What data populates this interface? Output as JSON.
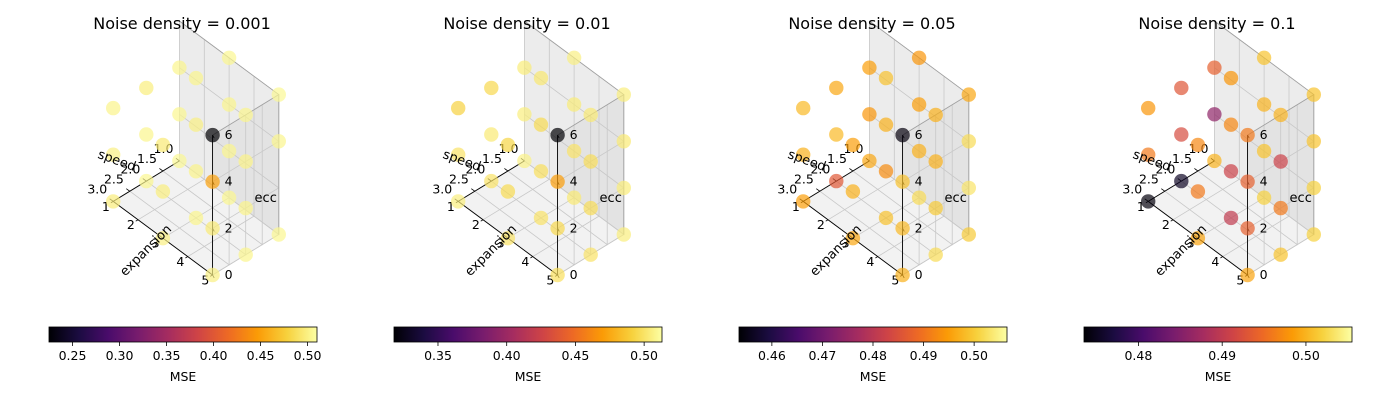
{
  "colormap": {
    "name": "inferno",
    "stops": [
      "#000004",
      "#1b0c41",
      "#4a0c6b",
      "#781c6d",
      "#a52c60",
      "#cf4446",
      "#ed6925",
      "#fb9b06",
      "#f7d13d",
      "#fcffa4"
    ]
  },
  "chart_data": [
    {
      "type": "scatter3d",
      "title": "Noise density = 0.001",
      "xlabel": "speed",
      "ylabel": "expansion",
      "zlabel": "ecc",
      "xticks": [
        "1.0",
        "1.5",
        "2.0",
        "2.5",
        "3.0"
      ],
      "yticks": [
        "1",
        "2",
        "3",
        "4",
        "5"
      ],
      "zticks": [
        "0",
        "2",
        "4",
        "6"
      ],
      "xlim": [
        1.0,
        3.0
      ],
      "ylim": [
        1,
        5
      ],
      "zlim": [
        0,
        6
      ],
      "colorbar": {
        "label": "MSE",
        "range": [
          0.225,
          0.51
        ],
        "ticks": [
          "0.25",
          "0.30",
          "0.35",
          "0.40",
          "0.45",
          "0.50"
        ]
      },
      "points": [
        {
          "x": 1.0,
          "y": 1,
          "z": 0,
          "mse": 0.505
        },
        {
          "x": 1.0,
          "y": 1,
          "z": 2,
          "mse": 0.504
        },
        {
          "x": 1.0,
          "y": 1,
          "z": 4,
          "mse": 0.503
        },
        {
          "x": 1.0,
          "y": 3,
          "z": 0,
          "mse": 0.504
        },
        {
          "x": 1.0,
          "y": 3,
          "z": 2,
          "mse": 0.503
        },
        {
          "x": 1.0,
          "y": 3,
          "z": 4,
          "mse": 0.503
        },
        {
          "x": 1.0,
          "y": 3,
          "z": 6,
          "mse": 0.504
        },
        {
          "x": 1.0,
          "y": 5,
          "z": 0,
          "mse": 0.504
        },
        {
          "x": 1.0,
          "y": 5,
          "z": 4,
          "mse": 0.503
        },
        {
          "x": 1.0,
          "y": 5,
          "z": 6,
          "mse": 0.505
        },
        {
          "x": 2.0,
          "y": 1,
          "z": 0,
          "mse": 0.504
        },
        {
          "x": 2.0,
          "y": 1,
          "z": 2,
          "mse": 0.503
        },
        {
          "x": 2.0,
          "y": 1,
          "z": 4,
          "mse": 0.498
        },
        {
          "x": 2.0,
          "y": 3,
          "z": 0,
          "mse": 0.503
        },
        {
          "x": 2.0,
          "y": 3,
          "z": 2,
          "mse": 0.502
        },
        {
          "x": 2.0,
          "y": 3,
          "z": 4,
          "mse": 0.5
        },
        {
          "x": 2.0,
          "y": 3,
          "z": 6,
          "mse": 0.503
        },
        {
          "x": 2.0,
          "y": 5,
          "z": 0,
          "mse": 0.503
        },
        {
          "x": 2.0,
          "y": 5,
          "z": 2,
          "mse": 0.502
        },
        {
          "x": 2.0,
          "y": 5,
          "z": 4,
          "mse": 0.501
        },
        {
          "x": 2.0,
          "y": 5,
          "z": 6,
          "mse": 0.503
        },
        {
          "x": 3.0,
          "y": 1,
          "z": 0,
          "mse": 0.497
        },
        {
          "x": 3.0,
          "y": 1,
          "z": 2,
          "mse": 0.5
        },
        {
          "x": 3.0,
          "y": 1,
          "z": 4,
          "mse": 0.502
        },
        {
          "x": 3.0,
          "y": 3,
          "z": 0,
          "mse": 0.5
        },
        {
          "x": 3.0,
          "y": 3,
          "z": 2,
          "mse": 0.498
        },
        {
          "x": 3.0,
          "y": 3,
          "z": 4,
          "mse": 0.495
        },
        {
          "x": 3.0,
          "y": 5,
          "z": 0,
          "mse": 0.5
        },
        {
          "x": 3.0,
          "y": 5,
          "z": 2,
          "mse": 0.496
        },
        {
          "x": 3.0,
          "y": 5,
          "z": 4,
          "mse": 0.45
        },
        {
          "x": 3.0,
          "y": 5,
          "z": 6,
          "mse": 0.225
        }
      ]
    },
    {
      "type": "scatter3d",
      "title": "Noise density = 0.01",
      "xlabel": "speed",
      "ylabel": "expansion",
      "zlabel": "ecc",
      "xticks": [
        "1.0",
        "1.5",
        "2.0",
        "2.5",
        "3.0"
      ],
      "yticks": [
        "1",
        "2",
        "3",
        "4",
        "5"
      ],
      "zticks": [
        "0",
        "2",
        "4",
        "6"
      ],
      "xlim": [
        1.0,
        3.0
      ],
      "ylim": [
        1,
        5
      ],
      "zlim": [
        0,
        6
      ],
      "colorbar": {
        "label": "MSE",
        "range": [
          0.318,
          0.513
        ],
        "ticks": [
          "0.35",
          "0.40",
          "0.45",
          "0.50"
        ]
      },
      "points": [
        {
          "x": 1.0,
          "y": 1,
          "z": 0,
          "mse": 0.507
        },
        {
          "x": 1.0,
          "y": 1,
          "z": 2,
          "mse": 0.505
        },
        {
          "x": 1.0,
          "y": 1,
          "z": 4,
          "mse": 0.504
        },
        {
          "x": 1.0,
          "y": 3,
          "z": 0,
          "mse": 0.503
        },
        {
          "x": 1.0,
          "y": 3,
          "z": 2,
          "mse": 0.5
        },
        {
          "x": 1.0,
          "y": 3,
          "z": 4,
          "mse": 0.504
        },
        {
          "x": 1.0,
          "y": 3,
          "z": 6,
          "mse": 0.506
        },
        {
          "x": 1.0,
          "y": 5,
          "z": 0,
          "mse": 0.505
        },
        {
          "x": 1.0,
          "y": 5,
          "z": 2,
          "mse": 0.504
        },
        {
          "x": 1.0,
          "y": 5,
          "z": 4,
          "mse": 0.503
        },
        {
          "x": 1.0,
          "y": 5,
          "z": 6,
          "mse": 0.505
        },
        {
          "x": 2.0,
          "y": 1,
          "z": 0,
          "mse": 0.5
        },
        {
          "x": 2.0,
          "y": 1,
          "z": 2,
          "mse": 0.503
        },
        {
          "x": 2.0,
          "y": 1,
          "z": 4,
          "mse": 0.495
        },
        {
          "x": 2.0,
          "y": 3,
          "z": 0,
          "mse": 0.5
        },
        {
          "x": 2.0,
          "y": 3,
          "z": 2,
          "mse": 0.498
        },
        {
          "x": 2.0,
          "y": 3,
          "z": 4,
          "mse": 0.496
        },
        {
          "x": 2.0,
          "y": 3,
          "z": 6,
          "mse": 0.502
        },
        {
          "x": 2.0,
          "y": 5,
          "z": 0,
          "mse": 0.5
        },
        {
          "x": 2.0,
          "y": 5,
          "z": 2,
          "mse": 0.497
        },
        {
          "x": 2.0,
          "y": 5,
          "z": 4,
          "mse": 0.497
        },
        {
          "x": 2.0,
          "y": 5,
          "z": 6,
          "mse": 0.503
        },
        {
          "x": 3.0,
          "y": 1,
          "z": 0,
          "mse": 0.505
        },
        {
          "x": 3.0,
          "y": 1,
          "z": 2,
          "mse": 0.5
        },
        {
          "x": 3.0,
          "y": 1,
          "z": 4,
          "mse": 0.492
        },
        {
          "x": 3.0,
          "y": 3,
          "z": 0,
          "mse": 0.5
        },
        {
          "x": 3.0,
          "y": 3,
          "z": 2,
          "mse": 0.496
        },
        {
          "x": 3.0,
          "y": 3,
          "z": 4,
          "mse": 0.493
        },
        {
          "x": 3.0,
          "y": 5,
          "z": 0,
          "mse": 0.498
        },
        {
          "x": 3.0,
          "y": 5,
          "z": 2,
          "mse": 0.495
        },
        {
          "x": 3.0,
          "y": 5,
          "z": 4,
          "mse": 0.47
        },
        {
          "x": 3.0,
          "y": 5,
          "z": 6,
          "mse": 0.318
        }
      ]
    },
    {
      "type": "scatter3d",
      "title": "Noise density = 0.05",
      "xlabel": "speed",
      "ylabel": "expansion",
      "zlabel": "ecc",
      "xticks": [
        "1.0",
        "1.5",
        "2.0",
        "2.5",
        "3.0"
      ],
      "yticks": [
        "1",
        "2",
        "3",
        "4",
        "5"
      ],
      "zticks": [
        "0",
        "2",
        "4",
        "6"
      ],
      "xlim": [
        1.0,
        3.0
      ],
      "ylim": [
        1,
        5
      ],
      "zlim": [
        0,
        6
      ],
      "colorbar": {
        "label": "MSE",
        "range": [
          0.4535,
          0.5065
        ],
        "ticks": [
          "0.46",
          "0.47",
          "0.48",
          "0.49",
          "0.50"
        ]
      },
      "points": [
        {
          "x": 1.0,
          "y": 1,
          "z": 0,
          "mse": 0.496
        },
        {
          "x": 1.0,
          "y": 1,
          "z": 2,
          "mse": 0.494
        },
        {
          "x": 1.0,
          "y": 1,
          "z": 4,
          "mse": 0.495
        },
        {
          "x": 1.0,
          "y": 3,
          "z": 0,
          "mse": 0.502
        },
        {
          "x": 1.0,
          "y": 3,
          "z": 2,
          "mse": 0.497
        },
        {
          "x": 1.0,
          "y": 3,
          "z": 4,
          "mse": 0.495
        },
        {
          "x": 1.0,
          "y": 3,
          "z": 6,
          "mse": 0.494
        },
        {
          "x": 1.0,
          "y": 5,
          "z": 0,
          "mse": 0.5
        },
        {
          "x": 1.0,
          "y": 5,
          "z": 2,
          "mse": 0.503
        },
        {
          "x": 1.0,
          "y": 5,
          "z": 4,
          "mse": 0.502
        },
        {
          "x": 1.0,
          "y": 5,
          "z": 6,
          "mse": 0.496
        },
        {
          "x": 2.0,
          "y": 1,
          "z": 0,
          "mse": 0.486
        },
        {
          "x": 2.0,
          "y": 1,
          "z": 2,
          "mse": 0.498
        },
        {
          "x": 2.0,
          "y": 1,
          "z": 4,
          "mse": 0.496
        },
        {
          "x": 2.0,
          "y": 3,
          "z": 0,
          "mse": 0.499
        },
        {
          "x": 2.0,
          "y": 3,
          "z": 2,
          "mse": 0.493
        },
        {
          "x": 2.0,
          "y": 3,
          "z": 4,
          "mse": 0.497
        },
        {
          "x": 2.0,
          "y": 3,
          "z": 6,
          "mse": 0.499
        },
        {
          "x": 2.0,
          "y": 5,
          "z": 0,
          "mse": 0.502
        },
        {
          "x": 2.0,
          "y": 5,
          "z": 2,
          "mse": 0.5
        },
        {
          "x": 2.0,
          "y": 5,
          "z": 4,
          "mse": 0.497
        },
        {
          "x": 2.0,
          "y": 5,
          "z": 6,
          "mse": 0.497
        },
        {
          "x": 3.0,
          "y": 1,
          "z": 0,
          "mse": 0.495
        },
        {
          "x": 3.0,
          "y": 1,
          "z": 2,
          "mse": 0.497
        },
        {
          "x": 3.0,
          "y": 1,
          "z": 4,
          "mse": 0.498
        },
        {
          "x": 3.0,
          "y": 3,
          "z": 0,
          "mse": 0.496
        },
        {
          "x": 3.0,
          "y": 3,
          "z": 2,
          "mse": 0.497
        },
        {
          "x": 3.0,
          "y": 3,
          "z": 4,
          "mse": 0.495
        },
        {
          "x": 3.0,
          "y": 5,
          "z": 0,
          "mse": 0.497
        },
        {
          "x": 3.0,
          "y": 5,
          "z": 2,
          "mse": 0.498
        },
        {
          "x": 3.0,
          "y": 5,
          "z": 4,
          "mse": 0.499
        },
        {
          "x": 3.0,
          "y": 5,
          "z": 6,
          "mse": 0.4545
        }
      ]
    },
    {
      "type": "scatter3d",
      "title": "Noise density = 0.1",
      "xlabel": "speed",
      "ylabel": "expansion",
      "zlabel": "ecc",
      "xticks": [
        "1.0",
        "1.5",
        "2.0",
        "2.5",
        "3.0"
      ],
      "yticks": [
        "1",
        "2",
        "3",
        "4",
        "5"
      ],
      "zticks": [
        "0",
        "2",
        "4",
        "6"
      ],
      "xlim": [
        1.0,
        3.0
      ],
      "ylim": [
        1,
        5
      ],
      "zlim": [
        0,
        6
      ],
      "colorbar": {
        "label": "MSE",
        "range": [
          0.4735,
          0.5055
        ],
        "ticks": [
          "0.48",
          "0.49",
          "0.50"
        ]
      },
      "points": [
        {
          "x": 1.0,
          "y": 1,
          "z": 0,
          "mse": 0.5
        },
        {
          "x": 1.0,
          "y": 1,
          "z": 2,
          "mse": 0.486
        },
        {
          "x": 1.0,
          "y": 1,
          "z": 4,
          "mse": 0.494
        },
        {
          "x": 1.0,
          "y": 3,
          "z": 0,
          "mse": 0.502
        },
        {
          "x": 1.0,
          "y": 3,
          "z": 2,
          "mse": 0.501
        },
        {
          "x": 1.0,
          "y": 3,
          "z": 4,
          "mse": 0.5
        },
        {
          "x": 1.0,
          "y": 3,
          "z": 6,
          "mse": 0.501
        },
        {
          "x": 1.0,
          "y": 5,
          "z": 0,
          "mse": 0.502
        },
        {
          "x": 1.0,
          "y": 5,
          "z": 2,
          "mse": 0.502
        },
        {
          "x": 1.0,
          "y": 5,
          "z": 4,
          "mse": 0.501
        },
        {
          "x": 1.0,
          "y": 5,
          "z": 6,
          "mse": 0.501
        },
        {
          "x": 2.0,
          "y": 1,
          "z": 0,
          "mse": 0.4755
        },
        {
          "x": 2.0,
          "y": 1,
          "z": 2,
          "mse": 0.492
        },
        {
          "x": 2.0,
          "y": 1,
          "z": 4,
          "mse": 0.493
        },
        {
          "x": 2.0,
          "y": 3,
          "z": 0,
          "mse": 0.49
        },
        {
          "x": 2.0,
          "y": 3,
          "z": 2,
          "mse": 0.491
        },
        {
          "x": 2.0,
          "y": 3,
          "z": 4,
          "mse": 0.497
        },
        {
          "x": 2.0,
          "y": 3,
          "z": 6,
          "mse": 0.498
        },
        {
          "x": 2.0,
          "y": 5,
          "z": 0,
          "mse": 0.501
        },
        {
          "x": 2.0,
          "y": 5,
          "z": 2,
          "mse": 0.496
        },
        {
          "x": 2.0,
          "y": 5,
          "z": 4,
          "mse": 0.491
        },
        {
          "x": 2.0,
          "y": 5,
          "z": 6,
          "mse": 0.5
        },
        {
          "x": 3.0,
          "y": 1,
          "z": 0,
          "mse": 0.474
        },
        {
          "x": 3.0,
          "y": 1,
          "z": 2,
          "mse": 0.496
        },
        {
          "x": 3.0,
          "y": 1,
          "z": 4,
          "mse": 0.498
        },
        {
          "x": 3.0,
          "y": 3,
          "z": 0,
          "mse": 0.499
        },
        {
          "x": 3.0,
          "y": 3,
          "z": 2,
          "mse": 0.496
        },
        {
          "x": 3.0,
          "y": 3,
          "z": 4,
          "mse": 0.497
        },
        {
          "x": 3.0,
          "y": 5,
          "z": 0,
          "mse": 0.499
        },
        {
          "x": 3.0,
          "y": 5,
          "z": 2,
          "mse": 0.494
        },
        {
          "x": 3.0,
          "y": 5,
          "z": 4,
          "mse": 0.494
        },
        {
          "x": 3.0,
          "y": 5,
          "z": 6,
          "mse": 0.496
        }
      ]
    }
  ]
}
